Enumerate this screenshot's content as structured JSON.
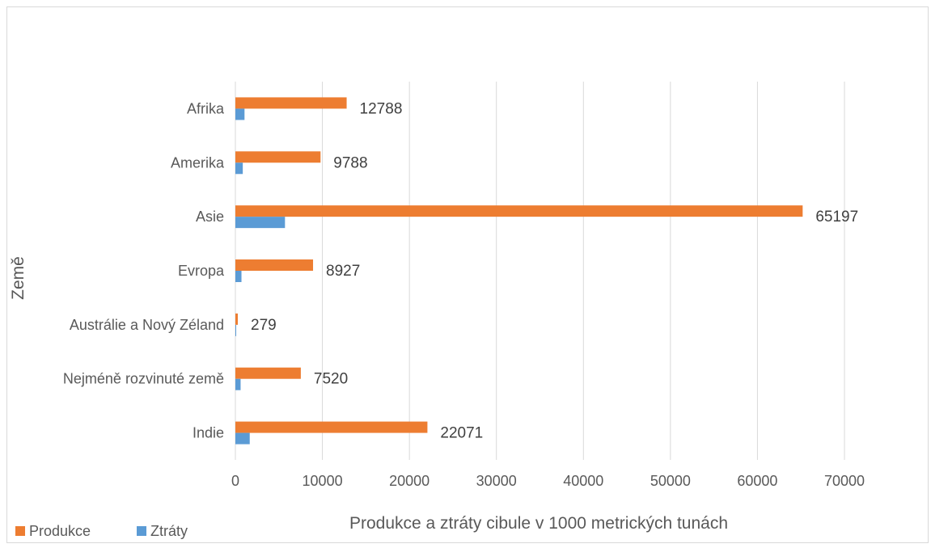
{
  "chart_data": {
    "type": "bar",
    "orientation": "horizontal",
    "categories": [
      "Afrika",
      "Amerika",
      "Asie",
      "Evropa",
      "Austrálie a Nový Zéland",
      "Nejméně rozvinuté země",
      "Indie"
    ],
    "series": [
      {
        "name": "Produkce",
        "color": "#ED7D31",
        "values": [
          12788,
          9788,
          65197,
          8927,
          279,
          7520,
          22071
        ]
      },
      {
        "name": "Ztráty",
        "color": "#5B9BD5",
        "values": [
          1050,
          850,
          5700,
          700,
          40,
          600,
          1650
        ]
      }
    ],
    "data_labels": [
      "12788",
      "9788",
      "65197",
      "8927",
      "279",
      "7520",
      "22071"
    ],
    "xlabel": "Produkce a ztráty cibule v 1000 metrických tunách",
    "ylabel": "Země",
    "xlim": [
      0,
      70000
    ],
    "xticks": [
      "0",
      "10000",
      "20000",
      "30000",
      "40000",
      "50000",
      "60000",
      "70000"
    ],
    "grid": "vertical",
    "legend": "bottom-left"
  }
}
